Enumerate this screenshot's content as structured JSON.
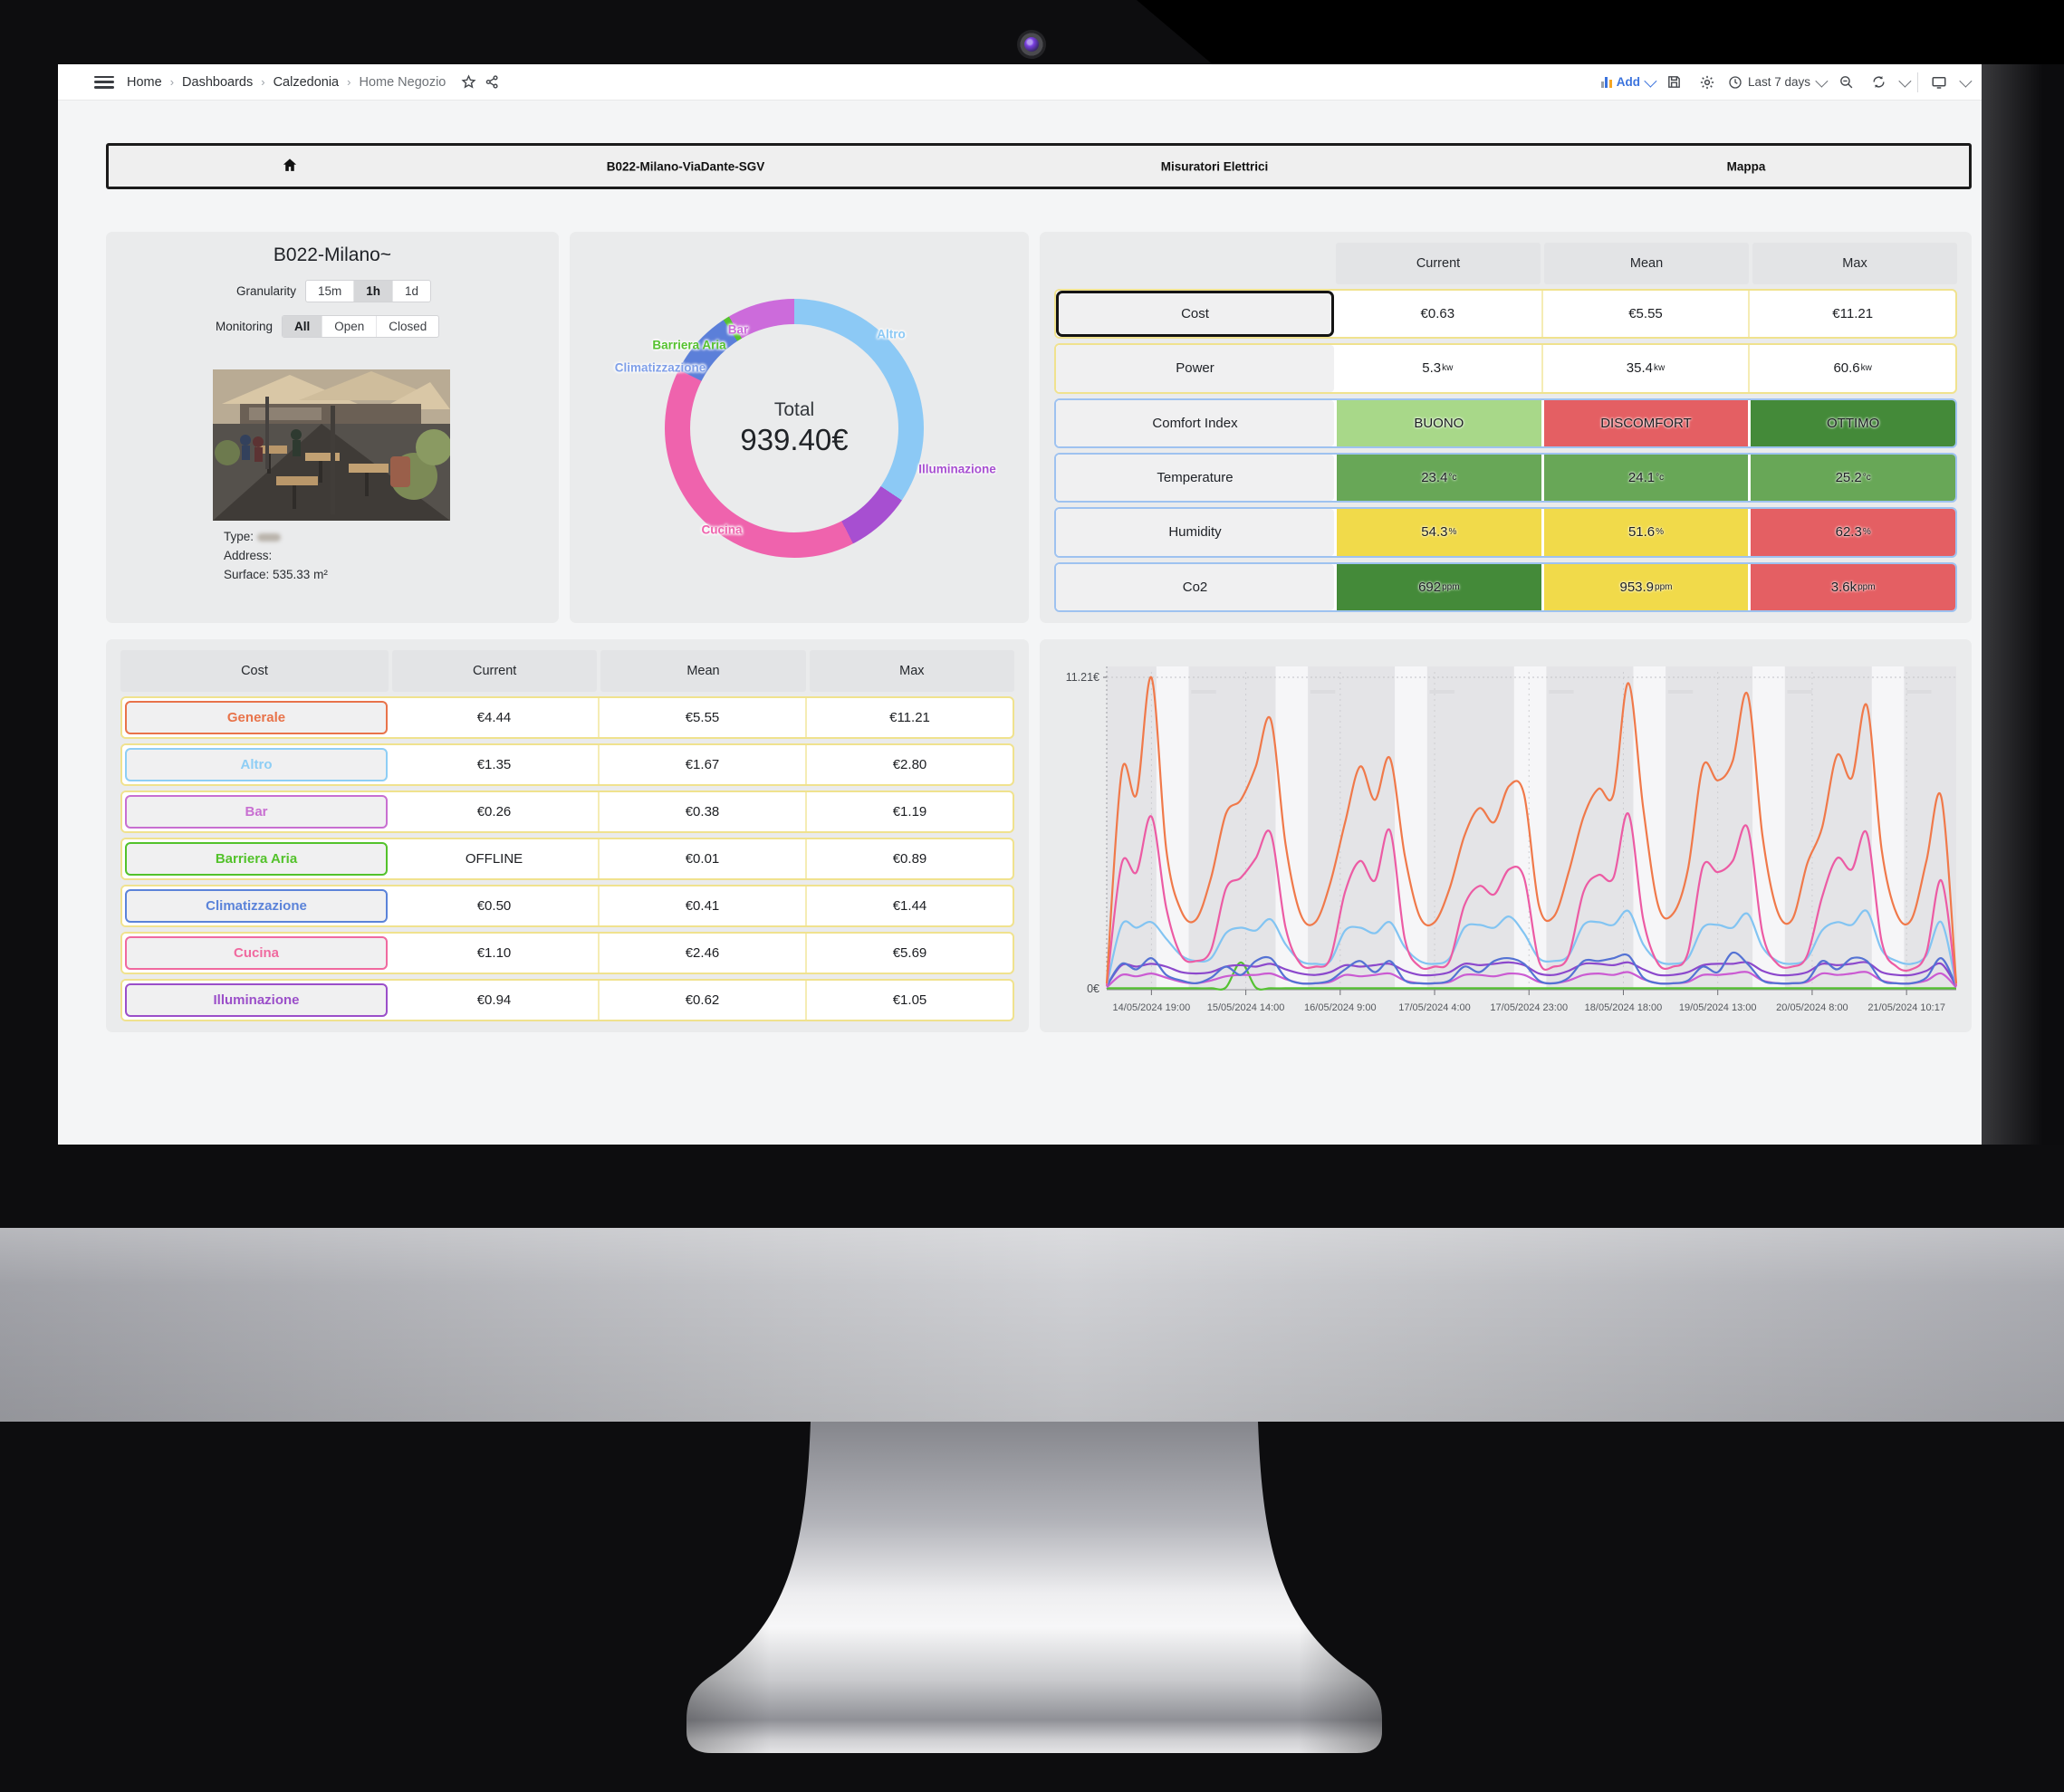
{
  "breadcrumb": {
    "items": [
      "Home",
      "Dashboards",
      "Calzedonia",
      "Home Negozio"
    ]
  },
  "toolbar": {
    "add_label": "Add",
    "time_range": "Last 7 days"
  },
  "banner": {
    "items": [
      "B022-Milano-ViaDante-SGV",
      "Misuratori Elettrici",
      "Mappa"
    ]
  },
  "info_panel": {
    "title": "B022-Milano~",
    "granularity_label": "Granularity",
    "granularity_options": [
      "15m",
      "1h",
      "1d"
    ],
    "granularity_selected": "1h",
    "monitoring_label": "Monitoring",
    "monitoring_options": [
      "All",
      "Open",
      "Closed"
    ],
    "monitoring_selected": "All",
    "type_label": "Type:",
    "address_label": "Address:",
    "surface_label": "Surface: 535.33 m²"
  },
  "donut": {
    "total_label": "Total",
    "total_value": "939.40€"
  },
  "env_table": {
    "headers": [
      "",
      "Current",
      "Mean",
      "Max"
    ],
    "rows": [
      {
        "label": "Cost",
        "label_style": "black",
        "row_style": "yellow",
        "cells": [
          {
            "t": "€0.63"
          },
          {
            "t": "€5.55"
          },
          {
            "t": "€11.21"
          }
        ]
      },
      {
        "label": "Power",
        "label_style": "plain",
        "row_style": "yellow",
        "cells": [
          {
            "t": "5.3",
            "u": "kw"
          },
          {
            "t": "35.4",
            "u": "kw"
          },
          {
            "t": "60.6",
            "u": "kw"
          }
        ]
      },
      {
        "label": "Comfort Index",
        "label_style": "plain",
        "row_style": "blue",
        "cells": [
          {
            "t": "BUONO",
            "bg": "lightgreen"
          },
          {
            "t": "DISCOMFORT",
            "bg": "red"
          },
          {
            "t": "OTTIMO",
            "bg": "darkgreen"
          }
        ]
      },
      {
        "label": "Temperature",
        "label_style": "plain",
        "row_style": "blue",
        "cells": [
          {
            "t": "23.4",
            "u": "°c",
            "bg": "green"
          },
          {
            "t": "24.1",
            "u": "°c",
            "bg": "green"
          },
          {
            "t": "25.2",
            "u": "°c",
            "bg": "green"
          }
        ]
      },
      {
        "label": "Humidity",
        "label_style": "plain",
        "row_style": "blue",
        "cells": [
          {
            "t": "54.3",
            "u": "%",
            "bg": "yellow"
          },
          {
            "t": "51.6",
            "u": "%",
            "bg": "yellow"
          },
          {
            "t": "62.3",
            "u": "%",
            "bg": "red"
          }
        ]
      },
      {
        "label": "Co2",
        "label_style": "plain",
        "row_style": "blue",
        "cells": [
          {
            "t": "692",
            "u": "ppm",
            "bg": "darkgreen"
          },
          {
            "t": "953.9",
            "u": "ppm",
            "bg": "yellow"
          },
          {
            "t": "3.6k",
            "u": "ppm",
            "bg": "red"
          }
        ]
      }
    ]
  },
  "cost_table": {
    "headers": [
      "Cost",
      "Current",
      "Mean",
      "Max"
    ],
    "rows": [
      {
        "label": "Generale",
        "color": "#e8734a",
        "cells": [
          "€4.44",
          "€5.55",
          "€11.21"
        ]
      },
      {
        "label": "Altro",
        "color": "#8ecef5",
        "cells": [
          "€1.35",
          "€1.67",
          "€2.80"
        ]
      },
      {
        "label": "Bar",
        "color": "#c86fd1",
        "cells": [
          "€0.26",
          "€0.38",
          "€1.19"
        ]
      },
      {
        "label": "Barriera Aria",
        "color": "#53c22b",
        "cells": [
          "OFFLINE",
          "€0.01",
          "€0.89"
        ]
      },
      {
        "label": "Climatizzazione",
        "color": "#5b83d9",
        "cells": [
          "€0.50",
          "€0.41",
          "€1.44"
        ]
      },
      {
        "label": "Cucina",
        "color": "#f0699f",
        "cells": [
          "€1.10",
          "€2.46",
          "€5.69"
        ]
      },
      {
        "label": "Illuminazione",
        "color": "#9b4fc9",
        "cells": [
          "€0.94",
          "€0.62",
          "€1.05"
        ]
      }
    ]
  },
  "status_colors": {
    "lightgreen": "#a8d889",
    "green": "#68a757",
    "darkgreen": "#448a39",
    "yellow": "#f1da4a",
    "red": "#e45f63"
  },
  "chart_data": [
    {
      "type": "pie",
      "title": "Cost breakdown donut",
      "total_label": "Total",
      "total_value": "939.40€",
      "start_angle_deg": -4,
      "segments": [
        {
          "name": "Altro",
          "fraction": 0.355,
          "color": "#8cc9f5",
          "label_color": "#8cc9f5"
        },
        {
          "name": "Illuminazione",
          "fraction": 0.081,
          "color": "#a74fd1",
          "label_color": "#a74fd1"
        },
        {
          "name": "Cucina",
          "fraction": 0.4,
          "color": "#ef63ad",
          "label_color": "#ef63ad"
        },
        {
          "name": "Climatizzazione",
          "fraction": 0.083,
          "color": "#5b7fd9",
          "label_color": "#7f9fe8"
        },
        {
          "name": "Barriera Aria",
          "fraction": 0.008,
          "color": "#56c230",
          "label_color": "#56c230"
        },
        {
          "name": "Bar",
          "fraction": 0.073,
          "color": "#cc6bdb",
          "label_color": "#cc6bdb"
        }
      ]
    },
    {
      "type": "line",
      "title": "Cost time series (7 days)",
      "ylim": [
        0,
        11.21
      ],
      "y_tick_labels": [
        "11.21€",
        "0€"
      ],
      "x_tick_labels": [
        "14/05/2024 19:00",
        "15/05/2024 14:00",
        "16/05/2024 9:00",
        "17/05/2024 4:00",
        "17/05/2024 23:00",
        "18/05/2024 18:00",
        "19/05/2024 13:00",
        "20/05/2024 8:00",
        "21/05/2024 10:17"
      ],
      "step_hours": 3,
      "t_range_hours": [
        0,
        171
      ],
      "series": [
        {
          "name": "Barriera Aria",
          "color": "#54c232",
          "values": [
            0.02,
            0.02,
            0.02,
            0.02,
            0.02,
            0.02,
            0.02,
            0.02,
            0.05,
            0.95,
            0.05,
            0.02,
            0.02,
            0.02,
            0.02,
            0.02,
            0.02,
            0.02,
            0.02,
            0.02,
            0.02,
            0.02,
            0.02,
            0.02,
            0.02,
            0.02,
            0.02,
            0.02,
            0.02,
            0.02,
            0.02,
            0.02,
            0.02,
            0.02,
            0.02,
            0.02,
            0.02,
            0.02,
            0.02,
            0.02,
            0.02,
            0.02,
            0.02,
            0.02,
            0.02,
            0.02,
            0.02,
            0.02,
            0.02,
            0.02,
            0.02,
            0.02,
            0.02,
            0.02,
            0.02,
            0.02,
            0.02,
            0.02
          ]
        },
        {
          "name": "Bar",
          "color": "#cb5bd2",
          "values": [
            0.05,
            0.5,
            0.45,
            0.55,
            0.4,
            0.25,
            0.2,
            0.3,
            0.45,
            0.5,
            0.5,
            0.55,
            0.35,
            0.2,
            0.2,
            0.25,
            0.5,
            0.45,
            0.5,
            0.55,
            0.3,
            0.2,
            0.2,
            0.25,
            0.5,
            0.5,
            0.45,
            0.55,
            0.5,
            0.25,
            0.2,
            0.3,
            0.5,
            0.55,
            0.5,
            0.6,
            0.35,
            0.2,
            0.2,
            0.25,
            0.5,
            0.5,
            0.55,
            0.6,
            0.3,
            0.2,
            0.2,
            0.25,
            0.55,
            0.5,
            0.55,
            0.6,
            0.3,
            0.2,
            0.2,
            0.3,
            0.55,
            0.05
          ]
        },
        {
          "name": "Illuminazione",
          "color": "#8c48cc",
          "values": [
            0.1,
            0.85,
            0.8,
            0.9,
            0.8,
            0.6,
            0.55,
            0.6,
            0.8,
            0.85,
            0.8,
            0.9,
            0.7,
            0.55,
            0.5,
            0.6,
            0.85,
            0.8,
            0.85,
            0.9,
            0.65,
            0.5,
            0.5,
            0.6,
            0.9,
            0.85,
            0.9,
            0.95,
            0.85,
            0.55,
            0.5,
            0.65,
            0.9,
            0.9,
            0.85,
            0.95,
            0.7,
            0.5,
            0.5,
            0.6,
            0.85,
            0.9,
            0.9,
            0.95,
            0.65,
            0.5,
            0.5,
            0.6,
            0.9,
            0.85,
            0.9,
            0.95,
            0.6,
            0.5,
            0.5,
            0.65,
            0.9,
            0.1
          ]
        },
        {
          "name": "Climatizzazione",
          "color": "#5472d4",
          "values": [
            0.1,
            0.9,
            0.7,
            1.1,
            0.5,
            0.3,
            0.2,
            0.4,
            0.8,
            0.5,
            1.0,
            1.1,
            0.4,
            0.2,
            0.2,
            0.3,
            0.7,
            1.0,
            0.6,
            1.0,
            0.3,
            0.2,
            0.2,
            0.3,
            0.8,
            0.6,
            1.0,
            1.1,
            0.9,
            0.3,
            0.2,
            0.4,
            1.0,
            1.0,
            1.1,
            1.2,
            0.4,
            0.2,
            0.2,
            0.3,
            0.8,
            0.6,
            1.3,
            0.9,
            0.3,
            0.2,
            0.2,
            0.3,
            1.0,
            0.7,
            1.1,
            1.0,
            0.3,
            0.2,
            0.2,
            0.4,
            1.1,
            0.1
          ]
        },
        {
          "name": "Altro",
          "color": "#82c4f2",
          "values": [
            0.1,
            2.3,
            2.2,
            2.4,
            1.8,
            1.2,
            1.0,
            1.1,
            2.0,
            2.2,
            2.1,
            2.5,
            1.6,
            1.0,
            0.9,
            1.0,
            2.1,
            2.2,
            2.0,
            2.4,
            1.5,
            1.0,
            0.9,
            1.1,
            2.2,
            2.3,
            2.2,
            2.6,
            2.0,
            1.1,
            1.0,
            1.2,
            2.3,
            2.4,
            2.3,
            2.8,
            1.6,
            1.0,
            0.9,
            1.1,
            2.2,
            2.3,
            2.2,
            2.7,
            1.5,
            1.0,
            0.9,
            1.1,
            2.1,
            2.4,
            2.3,
            2.8,
            1.4,
            1.0,
            0.9,
            1.2,
            2.4,
            0.1
          ]
        },
        {
          "name": "Cucina",
          "color": "#ec5ba4",
          "values": [
            0.1,
            4.5,
            4.2,
            6.2,
            2.9,
            1.2,
            1.0,
            1.4,
            3.6,
            4.0,
            4.7,
            5.6,
            2.2,
            0.9,
            0.8,
            1.1,
            3.5,
            4.6,
            3.9,
            5.7,
            1.8,
            0.8,
            0.8,
            1.0,
            3.0,
            3.7,
            3.4,
            4.3,
            4.0,
            1.0,
            0.8,
            1.2,
            3.5,
            4.1,
            4.0,
            6.3,
            2.5,
            0.9,
            0.8,
            1.3,
            4.4,
            4.2,
            4.6,
            5.8,
            2.0,
            0.9,
            0.8,
            1.2,
            3.3,
            4.7,
            4.3,
            5.6,
            1.7,
            0.8,
            0.7,
            1.3,
            3.9,
            0.1
          ]
        },
        {
          "name": "Generale",
          "color": "#f0794a",
          "values": [
            0.2,
            7.8,
            7.0,
            11.2,
            5.0,
            2.8,
            2.5,
            4.0,
            6.3,
            6.8,
            8.0,
            9.7,
            5.2,
            2.7,
            2.4,
            3.8,
            6.0,
            8.0,
            6.8,
            8.3,
            4.8,
            2.6,
            2.4,
            3.6,
            5.5,
            6.5,
            6.0,
            7.3,
            7.0,
            3.0,
            2.6,
            4.2,
            6.2,
            7.2,
            7.0,
            11.0,
            6.5,
            3.0,
            2.7,
            4.3,
            8.0,
            7.5,
            8.2,
            10.6,
            5.5,
            2.8,
            2.5,
            4.5,
            5.8,
            8.4,
            7.6,
            10.2,
            5.0,
            2.7,
            2.5,
            4.6,
            6.9,
            0.2
          ]
        }
      ]
    }
  ]
}
